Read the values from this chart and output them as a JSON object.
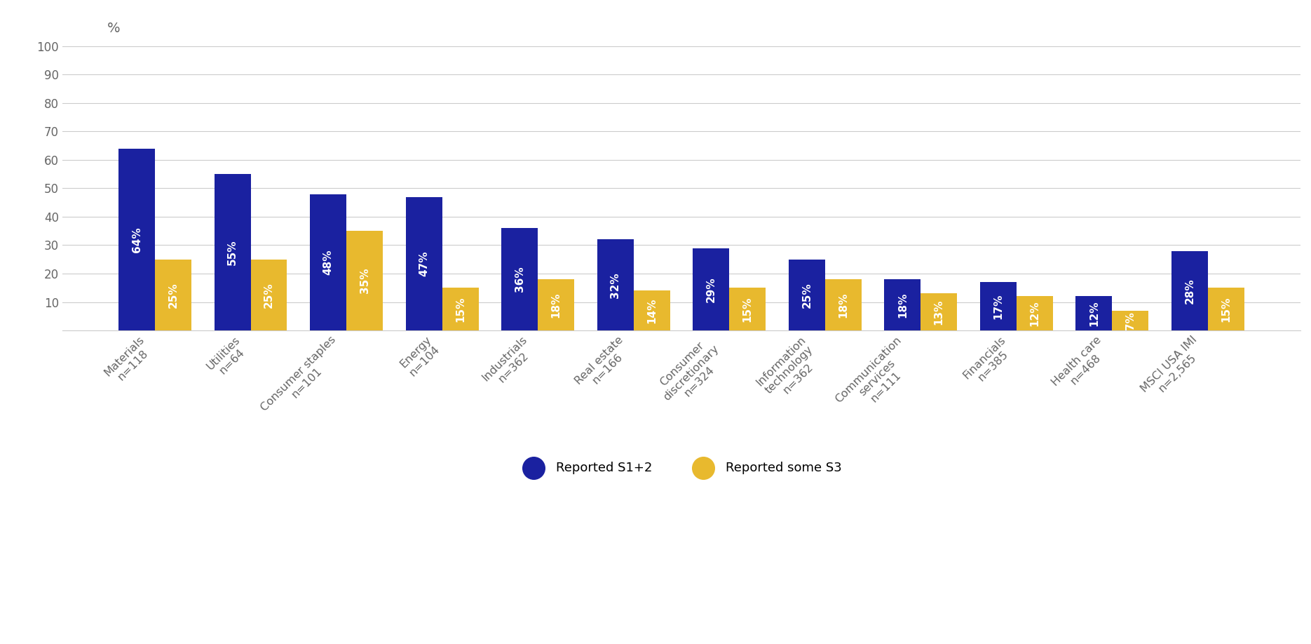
{
  "categories": [
    "Materials\nn=118",
    "Utilities\nn=64",
    "Consumer staples\nn=101",
    "Energy\nn=104",
    "Industrials\nn=362",
    "Real estate\nn=166",
    "Consumer\ndiscretionary\nn=324",
    "Information\ntechnology\nn=362",
    "Communication\nservices\nn=111",
    "Financials\nn=385",
    "Health care\nn=468",
    "MSCI USA IMI\nn=2,565"
  ],
  "s1s2_values": [
    64,
    55,
    48,
    47,
    36,
    32,
    29,
    25,
    18,
    17,
    12,
    28
  ],
  "s3_values": [
    25,
    25,
    35,
    15,
    18,
    14,
    15,
    18,
    13,
    12,
    7,
    15
  ],
  "s1s2_color": "#1a21a0",
  "s3_color": "#e8b92e",
  "bar_width": 0.38,
  "ylim": [
    0,
    105
  ],
  "yticks": [
    0,
    10,
    20,
    30,
    40,
    50,
    60,
    70,
    80,
    90,
    100
  ],
  "ylabel": "%",
  "legend_labels": [
    "Reported S1+2",
    "Reported some S3"
  ],
  "background_color": "#ffffff",
  "grid_color": "#cccccc",
  "label_fontsize": 11.5,
  "tick_fontsize": 12,
  "value_fontsize": 11,
  "legend_fontsize": 13,
  "ylabel_fontsize": 14
}
